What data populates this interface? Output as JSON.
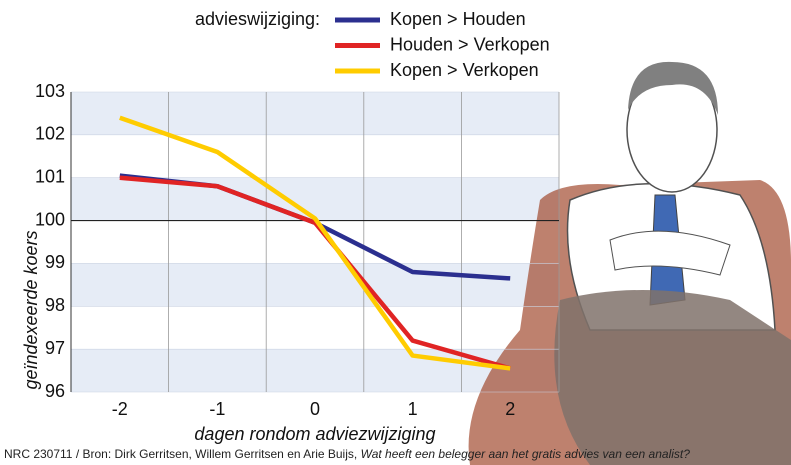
{
  "chart_data": {
    "type": "line",
    "legend_title": "advieswijziging:",
    "x": [
      -2,
      -1,
      0,
      1,
      2
    ],
    "xlim": [
      -2.5,
      2.5
    ],
    "xticks": [
      -2,
      -1,
      0,
      1,
      2
    ],
    "ylim": [
      96,
      103
    ],
    "yticks": [
      96,
      97,
      98,
      99,
      100,
      101,
      102,
      103
    ],
    "xlabel": "dagen rondom adviezwijziging",
    "ylabel": "geïndexeerde koers",
    "reference_line": 100,
    "series": [
      {
        "name": "Kopen > Houden",
        "color": "#2b2f8f",
        "values": [
          101.05,
          100.8,
          99.95,
          98.8,
          98.65
        ]
      },
      {
        "name": "Houden > Verkopen",
        "color": "#e02424",
        "values": [
          101.0,
          100.8,
          99.95,
          97.2,
          96.55
        ]
      },
      {
        "name": "Kopen > Verkopen",
        "color": "#ffcc00",
        "values": [
          102.4,
          101.6,
          100.05,
          96.85,
          96.55
        ]
      }
    ],
    "source": "NRC 230711 / Bron: Dirk Gerritsen, Willem Gerritsen en Arie Buijs,",
    "source_title": "Wat heeft een belegger aan het gratis advies van een analist?"
  }
}
